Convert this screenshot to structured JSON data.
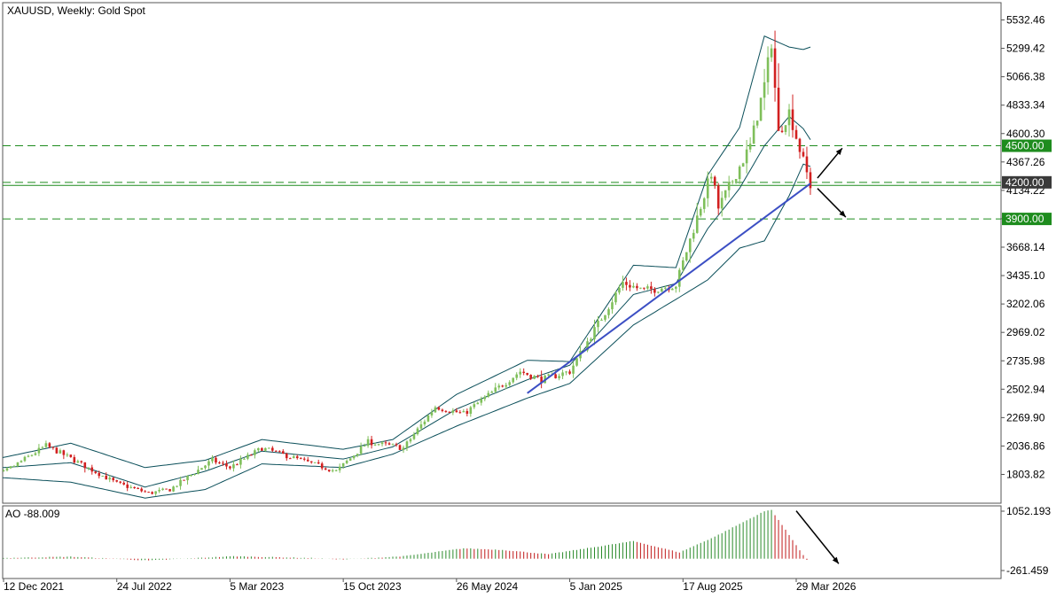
{
  "chart_data": {
    "type": "candlestick",
    "title": "XAUUSD, Weekly:  Gold Spot",
    "main_panel": {
      "ylim": [
        1650,
        5700
      ],
      "y_ticks": [
        5532.46,
        5299.42,
        5066.38,
        4833.34,
        4600.3,
        4367.26,
        4134.22,
        3901.18,
        3668.14,
        3435.1,
        3202.06,
        2969.02,
        2735.98,
        2502.94,
        2269.9,
        2036.86,
        1803.82
      ],
      "y_tick_labels": [
        "5532.46",
        "5299.42",
        "5066.38",
        "4833.34",
        "4600.30",
        "4367.26",
        "4134.22",
        "3901.18",
        "3668.14",
        "3435.10",
        "3202.06",
        "2969.02",
        "2735.98",
        "2502.94",
        "2269.90",
        "2036.86",
        "1803.82"
      ],
      "price_levels": [
        {
          "value": 4500.0,
          "label": "4500.00",
          "style": "dashed",
          "color": "#1e8c1e"
        },
        {
          "value": 4200.0,
          "label": "4200.00",
          "style": "dashed",
          "color": "#1e8c1e"
        },
        {
          "value": 3900.0,
          "label": "3900.00",
          "style": "dashed",
          "color": "#1e8c1e"
        }
      ],
      "current_price_line": {
        "value": 4175.0,
        "color": "#1e8c1e"
      },
      "trendline": {
        "from": {
          "date": "2024-10-13",
          "price": 2470
        },
        "to": {
          "date": "2026-04-26",
          "price": 4190
        },
        "color": "#3c4fc4"
      },
      "arrows": [
        {
          "from": {
            "date": "2026-05-10",
            "price": 4235
          },
          "to": {
            "date": "2026-06-28",
            "price": 4480
          },
          "direction": "up"
        },
        {
          "from": {
            "date": "2026-05-10",
            "price": 4150
          },
          "to": {
            "date": "2026-07-05",
            "price": 3915
          },
          "direction": "down"
        }
      ],
      "bollinger": {
        "color": "#0b4f5a",
        "middle": [
          {
            "date": "2021-10-24",
            "value": 1845
          },
          {
            "date": "2022-04-24",
            "value": 1900
          },
          {
            "date": "2022-09-18",
            "value": 1700
          },
          {
            "date": "2023-01-15",
            "value": 1830
          },
          {
            "date": "2023-05-07",
            "value": 1995
          },
          {
            "date": "2023-10-15",
            "value": 1930
          },
          {
            "date": "2024-01-21",
            "value": 2030
          },
          {
            "date": "2024-05-26",
            "value": 2340
          },
          {
            "date": "2024-10-13",
            "value": 2580
          },
          {
            "date": "2025-01-05",
            "value": 2700
          },
          {
            "date": "2025-05-11",
            "value": 3280
          },
          {
            "date": "2025-08-03",
            "value": 3370
          },
          {
            "date": "2025-10-05",
            "value": 3820
          },
          {
            "date": "2025-12-07",
            "value": 4150
          },
          {
            "date": "2026-01-25",
            "value": 4500
          },
          {
            "date": "2026-03-15",
            "value": 4740
          },
          {
            "date": "2026-04-12",
            "value": 4640
          },
          {
            "date": "2026-04-26",
            "value": 4550
          }
        ],
        "upper": [
          {
            "date": "2021-10-24",
            "value": 1900
          },
          {
            "date": "2022-04-24",
            "value": 2060
          },
          {
            "date": "2022-09-18",
            "value": 1860
          },
          {
            "date": "2023-01-15",
            "value": 1920
          },
          {
            "date": "2023-05-07",
            "value": 2090
          },
          {
            "date": "2023-10-15",
            "value": 2010
          },
          {
            "date": "2024-01-21",
            "value": 2090
          },
          {
            "date": "2024-05-26",
            "value": 2460
          },
          {
            "date": "2024-10-13",
            "value": 2740
          },
          {
            "date": "2025-01-05",
            "value": 2730
          },
          {
            "date": "2025-05-11",
            "value": 3520
          },
          {
            "date": "2025-08-03",
            "value": 3500
          },
          {
            "date": "2025-10-05",
            "value": 4260
          },
          {
            "date": "2025-12-07",
            "value": 4650
          },
          {
            "date": "2026-01-25",
            "value": 5400
          },
          {
            "date": "2026-03-15",
            "value": 5310
          },
          {
            "date": "2026-04-12",
            "value": 5290
          },
          {
            "date": "2026-04-26",
            "value": 5310
          }
        ],
        "lower": [
          {
            "date": "2021-10-24",
            "value": 1790
          },
          {
            "date": "2022-04-24",
            "value": 1740
          },
          {
            "date": "2022-09-18",
            "value": 1610
          },
          {
            "date": "2023-01-15",
            "value": 1680
          },
          {
            "date": "2023-05-07",
            "value": 1890
          },
          {
            "date": "2023-10-15",
            "value": 1860
          },
          {
            "date": "2024-01-21",
            "value": 1970
          },
          {
            "date": "2024-05-26",
            "value": 2200
          },
          {
            "date": "2024-10-13",
            "value": 2430
          },
          {
            "date": "2025-01-05",
            "value": 2550
          },
          {
            "date": "2025-05-11",
            "value": 3030
          },
          {
            "date": "2025-08-03",
            "value": 3240
          },
          {
            "date": "2025-10-05",
            "value": 3400
          },
          {
            "date": "2025-12-07",
            "value": 3660
          },
          {
            "date": "2026-01-25",
            "value": 3720
          },
          {
            "date": "2026-03-15",
            "value": 4090
          },
          {
            "date": "2026-04-12",
            "value": 4350
          },
          {
            "date": "2026-04-26",
            "value": 4330
          }
        ]
      },
      "price_path": [
        {
          "date": "2021-10-24",
          "close": 1800
        },
        {
          "date": "2021-12-12",
          "close": 1820
        },
        {
          "date": "2022-03-06",
          "close": 2040
        },
        {
          "date": "2022-04-17",
          "close": 1950
        },
        {
          "date": "2022-07-24",
          "close": 1730
        },
        {
          "date": "2022-09-25",
          "close": 1650
        },
        {
          "date": "2022-11-06",
          "close": 1680
        },
        {
          "date": "2023-01-29",
          "close": 1920
        },
        {
          "date": "2023-03-05",
          "close": 1860
        },
        {
          "date": "2023-05-07",
          "close": 2020
        },
        {
          "date": "2023-10-01",
          "close": 1830
        },
        {
          "date": "2023-12-03",
          "close": 2070
        },
        {
          "date": "2024-02-11",
          "close": 2020
        },
        {
          "date": "2024-04-14",
          "close": 2360
        },
        {
          "date": "2024-06-09",
          "close": 2300
        },
        {
          "date": "2024-09-29",
          "close": 2650
        },
        {
          "date": "2024-11-10",
          "close": 2580
        },
        {
          "date": "2025-01-05",
          "close": 2650
        },
        {
          "date": "2025-04-20",
          "close": 3380
        },
        {
          "date": "2025-06-01",
          "close": 3310
        },
        {
          "date": "2025-08-03",
          "close": 3360
        },
        {
          "date": "2025-10-12",
          "close": 4280
        },
        {
          "date": "2025-10-26",
          "close": 3990
        },
        {
          "date": "2025-12-28",
          "close": 4500
        },
        {
          "date": "2026-01-25",
          "close": 5000
        },
        {
          "date": "2026-02-08",
          "close": 5350
        },
        {
          "date": "2026-02-22",
          "close": 4600
        },
        {
          "date": "2026-03-15",
          "close": 4780
        },
        {
          "date": "2026-04-05",
          "close": 4470
        },
        {
          "date": "2026-04-26",
          "close": 4175
        }
      ]
    },
    "indicator_panel": {
      "label": "AO -88.009",
      "ylim": [
        -310,
        1110
      ],
      "y_ticks": [
        1052.193,
        -261.459
      ],
      "y_tick_labels": [
        "1052.193",
        "-261.459"
      ],
      "up_color": "#2a8a2a",
      "down_color": "#c01818",
      "ao_path": [
        {
          "date": "2021-10-24",
          "value": 5
        },
        {
          "date": "2022-04-24",
          "value": 45
        },
        {
          "date": "2022-09-25",
          "value": -40
        },
        {
          "date": "2023-03-12",
          "value": 55
        },
        {
          "date": "2023-08-13",
          "value": 15
        },
        {
          "date": "2023-10-15",
          "value": -18
        },
        {
          "date": "2024-02-11",
          "value": 55
        },
        {
          "date": "2024-06-09",
          "value": 230
        },
        {
          "date": "2024-08-25",
          "value": 195
        },
        {
          "date": "2024-11-24",
          "value": 100
        },
        {
          "date": "2025-05-11",
          "value": 390
        },
        {
          "date": "2025-08-10",
          "value": 140
        },
        {
          "date": "2025-10-19",
          "value": 490
        },
        {
          "date": "2026-01-25",
          "value": 1050
        },
        {
          "date": "2026-02-08",
          "value": 1080
        },
        {
          "date": "2026-04-19",
          "value": -30
        }
      ],
      "arrow": {
        "from": {
          "date": "2026-03-29",
          "value": 1060
        },
        "to": {
          "date": "2026-06-21",
          "value": -110
        }
      }
    },
    "x_axis": {
      "tick_dates": [
        "2021-12-12",
        "2022-07-24",
        "2023-03-05",
        "2023-10-15",
        "2024-05-26",
        "2025-01-05",
        "2025-08-17",
        "2026-03-29"
      ],
      "tick_labels": [
        "12 Dec 2021",
        "24 Jul 2022",
        "5 Mar 2023",
        "15 Oct 2023",
        "26 May 2024",
        "5 Jan 2025",
        "17 Aug 2025",
        "29 Mar 2026"
      ]
    }
  }
}
